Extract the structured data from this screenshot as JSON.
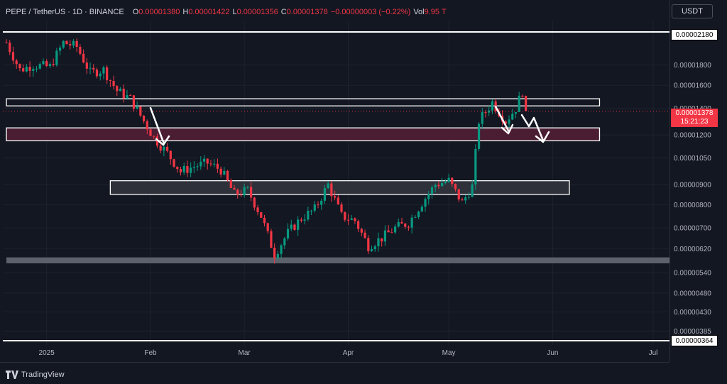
{
  "header": {
    "title": "PEPE / TetherUS · 1D · BINANCE",
    "o_label": "O",
    "o_value": "0.00001380",
    "h_label": "H",
    "h_value": "0.00001422",
    "l_label": "L",
    "l_value": "0.00001356",
    "c_label": "C",
    "c_value": "0.00001378",
    "change": "−0.00000003 (−0.22%)",
    "vol_label": "Vol",
    "vol_value": "9.95 T"
  },
  "currency_button": "USDT",
  "footer": {
    "brand": "TradingView"
  },
  "colors": {
    "up": "#089981",
    "down": "#f23645",
    "background": "#131722",
    "zone": "#ffffff"
  },
  "last_price": {
    "value": "0.00001378",
    "countdown": "15:21:23"
  },
  "level_tags": {
    "top": "0.00002180",
    "bottom": "0.00000364"
  },
  "chart_data": {
    "type": "candlestick",
    "title": "PEPE / TetherUS · 1D · BINANCE",
    "scale": "log",
    "ylim": [
      3.6e-06,
      2.35e-05
    ],
    "y_ticks": [
      "0.00001800",
      "0.00001600",
      "0.00001400",
      "0.00001200",
      "0.00001050",
      "0.00000900",
      "0.00000800",
      "0.00000700",
      "0.00000620",
      "0.00000540",
      "0.00000480",
      "0.00000430",
      "0.00000385"
    ],
    "x_ticks": [
      "2025",
      "Feb",
      "Mar",
      "Apr",
      "May",
      "Jun",
      "Jul"
    ],
    "x_tick_dates": [
      "2025-01-01",
      "2025-02-01",
      "2025-03-01",
      "2025-04-01",
      "2025-05-01",
      "2025-06-01",
      "2025-07-01"
    ],
    "close_path": [
      [
        "2024-12-20",
        2.05e-05
      ],
      [
        "2024-12-24",
        1.75e-05
      ],
      [
        "2024-12-28",
        1.8e-05
      ],
      [
        "2025-01-02",
        1.78e-05
      ],
      [
        "2025-01-06",
        2.05e-05
      ],
      [
        "2025-01-10",
        2e-05
      ],
      [
        "2025-01-14",
        1.72e-05
      ],
      [
        "2025-01-18",
        1.75e-05
      ],
      [
        "2025-01-22",
        1.55e-05
      ],
      [
        "2025-01-26",
        1.48e-05
      ],
      [
        "2025-01-30",
        1.3e-05
      ],
      [
        "2025-02-02",
        1.18e-05
      ],
      [
        "2025-02-06",
        1.08e-05
      ],
      [
        "2025-02-10",
        9.7e-06
      ],
      [
        "2025-02-14",
        1e-05
      ],
      [
        "2025-02-18",
        1.02e-05
      ],
      [
        "2025-02-22",
        9.8e-06
      ],
      [
        "2025-02-26",
        8.5e-06
      ],
      [
        "2025-03-02",
        8.7e-06
      ],
      [
        "2025-03-06",
        7.5e-06
      ],
      [
        "2025-03-10",
        6e-06
      ],
      [
        "2025-03-14",
        6.8e-06
      ],
      [
        "2025-03-18",
        7.4e-06
      ],
      [
        "2025-03-22",
        7.8e-06
      ],
      [
        "2025-03-26",
        9e-06
      ],
      [
        "2025-03-30",
        7.5e-06
      ],
      [
        "2025-04-03",
        7.3e-06
      ],
      [
        "2025-04-07",
        6.3e-06
      ],
      [
        "2025-04-11",
        6.6e-06
      ],
      [
        "2025-04-15",
        7e-06
      ],
      [
        "2025-04-19",
        7.2e-06
      ],
      [
        "2025-04-23",
        8.1e-06
      ],
      [
        "2025-04-27",
        9e-06
      ],
      [
        "2025-05-01",
        9.2e-06
      ],
      [
        "2025-05-05",
        8.1e-06
      ],
      [
        "2025-05-08",
        8.9e-06
      ],
      [
        "2025-05-10",
        1.3e-05
      ],
      [
        "2025-05-14",
        1.45e-05
      ],
      [
        "2025-05-18",
        1.3e-05
      ],
      [
        "2025-05-21",
        1.4e-05
      ],
      [
        "2025-05-23",
        1.55e-05
      ],
      [
        "2025-05-24",
        1.378e-05
      ]
    ],
    "zones": [
      {
        "from_date": "2024-12-20",
        "to_date": "2025-06-15",
        "top": 1.48e-05,
        "bottom": 1.42e-05,
        "style": "outline"
      },
      {
        "from_date": "2024-12-20",
        "to_date": "2025-06-15",
        "top": 1.25e-05,
        "bottom": 1.16e-05,
        "style": "filled-maroon"
      },
      {
        "from_date": "2025-01-20",
        "to_date": "2025-06-06",
        "top": 9.2e-06,
        "bottom": 8.5e-06,
        "style": "filled-gray"
      },
      {
        "from_date": "2024-12-20",
        "to_date": "2025-07-24",
        "top": 5.9e-06,
        "bottom": 5.7e-06,
        "style": "filled-lightgray"
      }
    ],
    "horizontal_lines": [
      2.18e-05,
      3.64e-06
    ],
    "annotations": [
      "downward arrow near Feb at 0.0000120 zone",
      "downward zigzag arrows near late May toward 0.0000120 zone"
    ]
  }
}
